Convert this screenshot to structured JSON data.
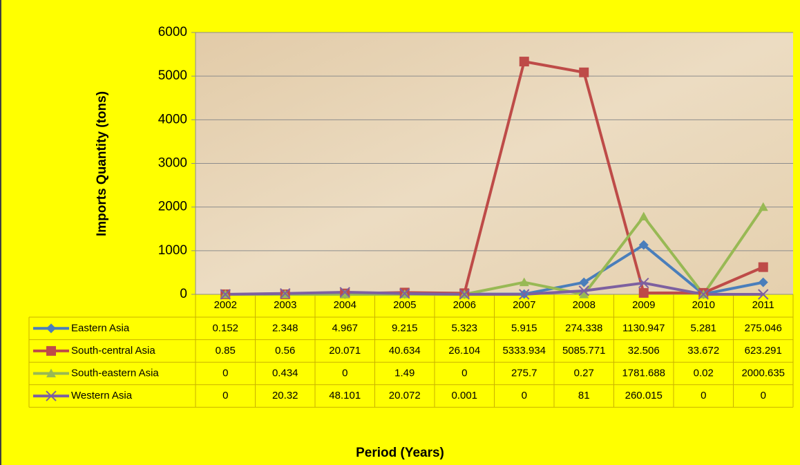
{
  "chart_data": {
    "type": "line",
    "y_label": "Imports Quantity (tons)",
    "x_label": "Period (Years)",
    "categories": [
      "2002",
      "2003",
      "2004",
      "2005",
      "2006",
      "2007",
      "2008",
      "2009",
      "2010",
      "2011"
    ],
    "series": [
      {
        "name": "Eastern Asia",
        "color": "#4a7ebb",
        "marker": "diamond",
        "values": [
          0.152,
          2.348,
          4.967,
          9.215,
          5.323,
          5.915,
          274.338,
          1130.947,
          5.281,
          275.046
        ]
      },
      {
        "name": "South-central Asia",
        "color": "#be4b48",
        "marker": "square",
        "values": [
          0.85,
          0.56,
          20.071,
          40.634,
          26.104,
          5333.934,
          5085.771,
          32.506,
          33.672,
          623.291
        ]
      },
      {
        "name": "South-eastern Asia",
        "color": "#98b954",
        "marker": "triangle",
        "values": [
          0,
          0.434,
          0,
          1.49,
          0,
          275.7,
          0.27,
          1781.688,
          0.02,
          2000.635
        ]
      },
      {
        "name": "Western Asia",
        "color": "#7d60a0",
        "marker": "x",
        "values": [
          0,
          20.32,
          48.101,
          20.072,
          0.001,
          0,
          81,
          260.015,
          0,
          0
        ]
      }
    ],
    "ylim": [
      0,
      6000
    ],
    "yticks": [
      0,
      1000,
      2000,
      3000,
      4000,
      5000,
      6000
    ],
    "grid": true
  }
}
